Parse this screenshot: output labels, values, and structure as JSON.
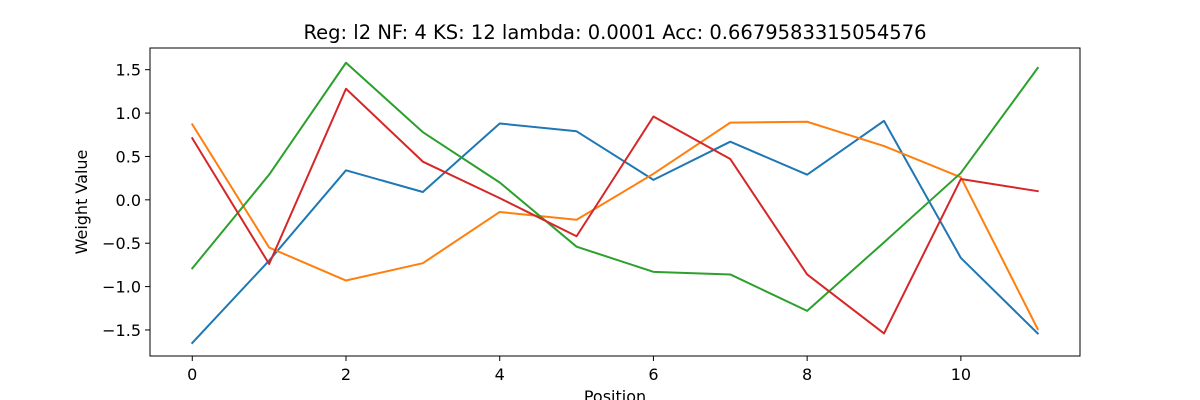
{
  "chart_data": {
    "type": "line",
    "title": "Reg: l2  NF: 4  KS: 12  lambda: 0.0001 Acc: 0.6679583315054576",
    "xlabel": "Position",
    "ylabel": "Weight Value",
    "x": [
      0,
      1,
      2,
      3,
      4,
      5,
      6,
      7,
      8,
      9,
      10,
      11
    ],
    "xlim": [
      -0.55,
      11.55
    ],
    "ylim": [
      -1.8,
      1.75
    ],
    "xticks": [
      0,
      2,
      4,
      6,
      8,
      10
    ],
    "yticks": [
      -1.5,
      -1.0,
      -0.5,
      0.0,
      0.5,
      1.0,
      1.5
    ],
    "xtick_labels": [
      "0",
      "2",
      "4",
      "6",
      "8",
      "10"
    ],
    "ytick_labels": [
      "−1.5",
      "−1.0",
      "−0.5",
      "0.0",
      "0.5",
      "1.0",
      "1.5"
    ],
    "grid": false,
    "series": [
      {
        "color": "#1f77b4",
        "values": [
          -1.65,
          -0.7,
          0.34,
          0.09,
          0.88,
          0.79,
          0.23,
          0.67,
          0.29,
          0.91,
          -0.67,
          -1.54
        ]
      },
      {
        "color": "#ff7f0e",
        "values": [
          0.87,
          -0.55,
          -0.93,
          -0.73,
          -0.14,
          -0.23,
          0.3,
          0.89,
          0.9,
          0.62,
          0.26,
          -1.49
        ]
      },
      {
        "color": "#2ca02c",
        "values": [
          -0.79,
          0.29,
          1.58,
          0.78,
          0.2,
          -0.54,
          -0.83,
          -0.86,
          -1.28,
          -0.49,
          0.31,
          1.52
        ]
      },
      {
        "color": "#d62728",
        "values": [
          0.71,
          -0.74,
          1.28,
          0.44,
          0.02,
          -0.42,
          0.96,
          0.47,
          -0.86,
          -1.54,
          0.24,
          0.1
        ]
      }
    ]
  }
}
